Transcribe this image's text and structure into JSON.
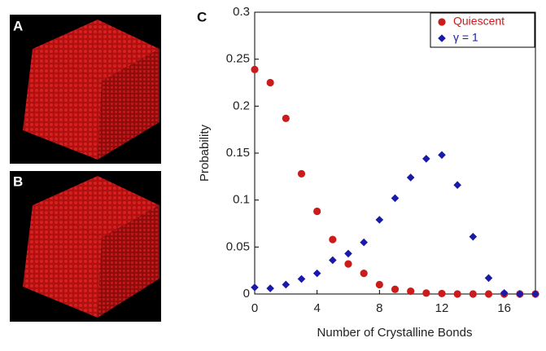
{
  "panel_labels": [
    "A",
    "B",
    "C"
  ],
  "chart_data": {
    "type": "scatter",
    "xlabel": "Number of Crystalline Bonds",
    "ylabel": "Probability",
    "x": [
      0,
      1,
      2,
      3,
      4,
      5,
      6,
      7,
      8,
      9,
      10,
      11,
      12,
      13,
      14,
      15,
      16,
      17,
      18
    ],
    "series": [
      {
        "name": "Quiescent",
        "color": "#cc1b1b",
        "marker": "circle",
        "values": [
          0.239,
          0.225,
          0.187,
          0.128,
          0.088,
          0.058,
          0.032,
          0.022,
          0.01,
          0.005,
          0.003,
          0.001,
          0.0005,
          0,
          0,
          0,
          0,
          0,
          0
        ]
      },
      {
        "name": "γ = 1",
        "color": "#1a1aa8",
        "marker": "diamond",
        "values": [
          0.007,
          0.006,
          0.01,
          0.016,
          0.022,
          0.036,
          0.043,
          0.055,
          0.079,
          0.102,
          0.124,
          0.144,
          0.148,
          0.116,
          0.061,
          0.017,
          0.001,
          0,
          0
        ]
      }
    ],
    "xlim": [
      0,
      18
    ],
    "ylim": [
      0,
      0.3
    ],
    "xticks": [
      0,
      4,
      8,
      12,
      16
    ],
    "yticks": [
      0,
      0.05,
      0.1,
      0.15,
      0.2,
      0.25,
      0.3
    ],
    "legend": "upper right"
  }
}
